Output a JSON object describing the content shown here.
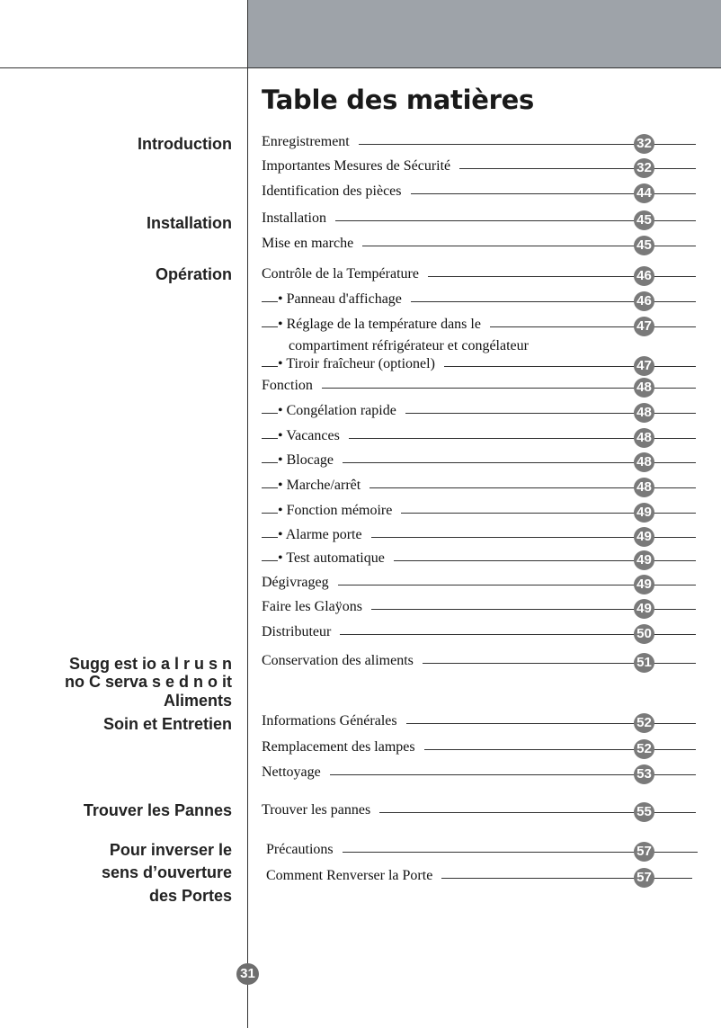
{
  "title": "Table des matières",
  "sections": [
    "Introduction",
    "Installation",
    "Opération",
    "Sugg est io  a l r u s n",
    "no C serva  s e d n o it",
    "Aliments",
    "Soin et Entretien",
    "Trouver les Pannes",
    "Pour inverser le",
    "sens d’ouverture",
    "des Portes"
  ],
  "entries": [
    {
      "text": "Enregistrement",
      "page": "32"
    },
    {
      "text": "Importantes Mesures de Sécurité",
      "page": "32"
    },
    {
      "text": "Identification des pièces",
      "page": "44"
    },
    {
      "text": "Installation",
      "page": "45"
    },
    {
      "text": "Mise en marche",
      "page": "45"
    },
    {
      "text": "Contrôle de la Température",
      "page": "46"
    },
    {
      "text": "•  Panneau d'affichage",
      "page": "46"
    },
    {
      "text": "• Réglage de la température dans le",
      "page": "47"
    },
    {
      "text": "• Tiroir  fraîcheur  (optionel)",
      "page": "47"
    },
    {
      "text": "Fonction",
      "page": "48"
    },
    {
      "text": "• Congélation rapide",
      "page": "48"
    },
    {
      "text": "• Vacances",
      "page": "48"
    },
    {
      "text": "• Blocage",
      "page": "48"
    },
    {
      "text": "• Marche/arrêt",
      "page": "48"
    },
    {
      "text": "• Fonction mémoire",
      "page": "49"
    },
    {
      "text": "• Alarme porte",
      "page": "49"
    },
    {
      "text": "• Test automatique",
      "page": "49"
    },
    {
      "text": "Dégivrageg",
      "page": "49"
    },
    {
      "text": "Faire les Glaÿons",
      "page": "49"
    },
    {
      "text": "Distributeur",
      "page": "50"
    },
    {
      "text": "Conservation des aliments",
      "page": "51"
    },
    {
      "text": "Informations Générales",
      "page": "52"
    },
    {
      "text": "Remplacement des lampes",
      "page": "52"
    },
    {
      "text": "Nettoyage",
      "page": "53"
    },
    {
      "text": "Trouver les pannes",
      "page": "55"
    },
    {
      "text": "Précautions",
      "page": "57"
    },
    {
      "text": "Comment Renverser la Porte",
      "page": "57"
    }
  ],
  "entry_continuation": "compartiment réfrigérateur et congélateur",
  "page_number": "31"
}
